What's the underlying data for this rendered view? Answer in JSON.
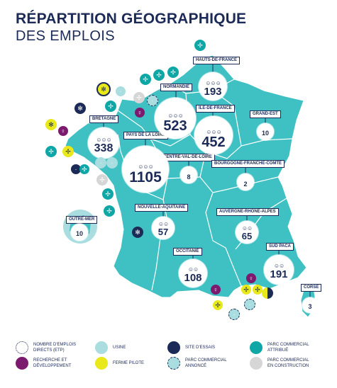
{
  "title": {
    "line1": "RÉPARTITION GÉOGRAPHIQUE",
    "line2": "DES EMPLOIS"
  },
  "colors": {
    "map": "#3fc1c4",
    "teal": "#0fa6a6",
    "navy": "#1b2a57",
    "purple": "#7b1a6e",
    "yellow": "#e8e81a",
    "usine": "#a9dde0",
    "construction": "#d6d6d6",
    "border": "#ffffff"
  },
  "regions": [
    {
      "name": "HAUTS-DE-FRANCE",
      "value": "193"
    },
    {
      "name": "NORMANDIE",
      "value": "523"
    },
    {
      "name": "ÎLE-DE-FRANCE",
      "value": "452"
    },
    {
      "name": "GRAND-EST",
      "value": "10"
    },
    {
      "name": "BRETAGNE",
      "value": "338"
    },
    {
      "name": "PAYS DE LA LOIRE",
      "value": "1105"
    },
    {
      "name": "CENTRE-VAL-DE-LOIRE",
      "value": "8"
    },
    {
      "name": "BOURGOGNE-FRANCHE-COMTÉ",
      "value": "2"
    },
    {
      "name": "OUTRE-MER",
      "value": "10"
    },
    {
      "name": "NOUVELLE-AQUITAINE",
      "value": "57"
    },
    {
      "name": "AUVERGNE-RHÔNE-ALPES",
      "value": "65"
    },
    {
      "name": "OCCITANIE",
      "value": "108"
    },
    {
      "name": "SUD PACA",
      "value": "191"
    },
    {
      "name": "CORSE",
      "value": "3"
    }
  ],
  "legend": [
    {
      "label": "NOMBRE D'EMPLOIS\nDIRECTS (ETP)",
      "icon": "people-icon"
    },
    {
      "label": "USINE",
      "icon": "factory-icon"
    },
    {
      "label": "SITE D'ESSAIS",
      "icon": "test-site-icon"
    },
    {
      "label": "PARC COMMERCIAL\nATTRIBUÉ",
      "icon": "wind-turbine-icon"
    },
    {
      "label": "RECHERCHE ET\nDÉVELOPPEMENT",
      "icon": "lightbulb-icon"
    },
    {
      "label": "FERME PILOTE",
      "icon": "pilot-farm-icon"
    },
    {
      "label": "PARC COMMERCIAL\nANNONCÉ",
      "icon": "announced-park-icon"
    },
    {
      "label": "PARC COMMERCIAL\nEN CONSTRUCTION",
      "icon": "construction-park-icon"
    }
  ]
}
